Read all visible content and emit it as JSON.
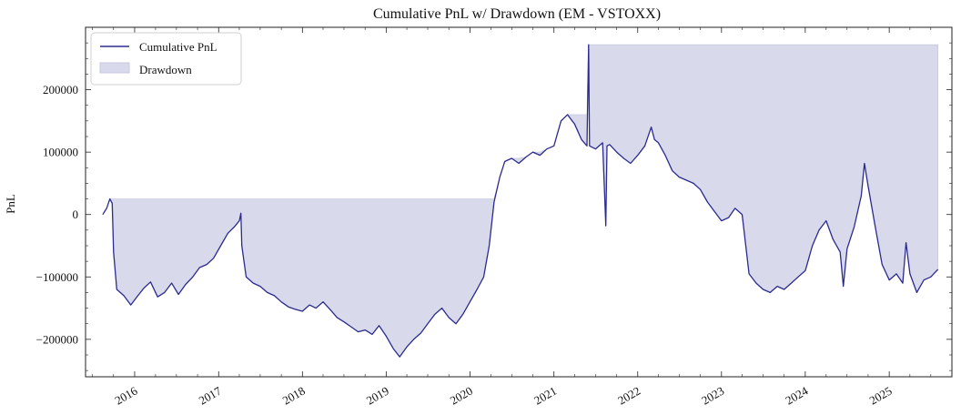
{
  "chart_data": {
    "type": "line",
    "title": "Cumulative PnL w/ Drawdown (EM - VSTOXX)",
    "xlabel": "",
    "ylabel": "PnL",
    "xlim": [
      "2015-06-01",
      "2025-10-01"
    ],
    "ylim": [
      -260000,
      300000
    ],
    "x_ticks": [
      "2016",
      "2017",
      "2018",
      "2019",
      "2020",
      "2021",
      "2022",
      "2023",
      "2024",
      "2025"
    ],
    "y_ticks": [
      -200000,
      -100000,
      0,
      100000,
      200000
    ],
    "y_tick_labels": [
      "−200000",
      "−100000",
      "0",
      "100000",
      "200000"
    ],
    "grid": false,
    "legend": "top-left",
    "colors": {
      "line": "#2b2b8f",
      "drawdown_fill": "#d9d9ec",
      "drawdown_edge": "#c8c8e2"
    },
    "series": [
      {
        "name": "Cumulative PnL",
        "points": [
          [
            "2015-08-15",
            0
          ],
          [
            "2015-09-01",
            10000
          ],
          [
            "2015-09-15",
            25000
          ],
          [
            "2015-09-25",
            18000
          ],
          [
            "2015-10-01",
            -60000
          ],
          [
            "2015-10-15",
            -120000
          ],
          [
            "2015-11-15",
            -130000
          ],
          [
            "2015-12-15",
            -145000
          ],
          [
            "2016-01-15",
            -130000
          ],
          [
            "2016-02-10",
            -118000
          ],
          [
            "2016-03-10",
            -108000
          ],
          [
            "2016-04-10",
            -132000
          ],
          [
            "2016-05-10",
            -125000
          ],
          [
            "2016-06-10",
            -110000
          ],
          [
            "2016-07-10",
            -128000
          ],
          [
            "2016-08-10",
            -112000
          ],
          [
            "2016-09-10",
            -100000
          ],
          [
            "2016-10-10",
            -85000
          ],
          [
            "2016-11-10",
            -80000
          ],
          [
            "2016-12-10",
            -70000
          ],
          [
            "2017-01-10",
            -50000
          ],
          [
            "2017-02-10",
            -30000
          ],
          [
            "2017-03-10",
            -20000
          ],
          [
            "2017-04-01",
            -10000
          ],
          [
            "2017-04-08",
            2000
          ],
          [
            "2017-04-12",
            -50000
          ],
          [
            "2017-05-01",
            -100000
          ],
          [
            "2017-06-01",
            -110000
          ],
          [
            "2017-07-01",
            -115000
          ],
          [
            "2017-08-01",
            -125000
          ],
          [
            "2017-09-01",
            -130000
          ],
          [
            "2017-10-01",
            -140000
          ],
          [
            "2017-11-01",
            -148000
          ],
          [
            "2017-12-01",
            -152000
          ],
          [
            "2018-01-01",
            -155000
          ],
          [
            "2018-02-01",
            -145000
          ],
          [
            "2018-03-01",
            -150000
          ],
          [
            "2018-04-01",
            -140000
          ],
          [
            "2018-05-01",
            -152000
          ],
          [
            "2018-06-01",
            -165000
          ],
          [
            "2018-07-01",
            -172000
          ],
          [
            "2018-08-01",
            -180000
          ],
          [
            "2018-09-01",
            -188000
          ],
          [
            "2018-10-01",
            -185000
          ],
          [
            "2018-11-01",
            -192000
          ],
          [
            "2018-12-01",
            -178000
          ],
          [
            "2019-01-01",
            -195000
          ],
          [
            "2019-02-01",
            -215000
          ],
          [
            "2019-03-01",
            -228000
          ],
          [
            "2019-04-01",
            -212000
          ],
          [
            "2019-05-01",
            -200000
          ],
          [
            "2019-06-01",
            -190000
          ],
          [
            "2019-07-01",
            -175000
          ],
          [
            "2019-08-01",
            -160000
          ],
          [
            "2019-09-01",
            -150000
          ],
          [
            "2019-10-01",
            -165000
          ],
          [
            "2019-11-01",
            -175000
          ],
          [
            "2019-12-01",
            -160000
          ],
          [
            "2020-01-01",
            -140000
          ],
          [
            "2020-02-01",
            -120000
          ],
          [
            "2020-03-01",
            -100000
          ],
          [
            "2020-03-25",
            -50000
          ],
          [
            "2020-04-15",
            20000
          ],
          [
            "2020-05-10",
            60000
          ],
          [
            "2020-06-01",
            85000
          ],
          [
            "2020-07-01",
            90000
          ],
          [
            "2020-08-01",
            82000
          ],
          [
            "2020-09-01",
            92000
          ],
          [
            "2020-10-01",
            100000
          ],
          [
            "2020-11-01",
            95000
          ],
          [
            "2020-12-01",
            105000
          ],
          [
            "2021-01-01",
            110000
          ],
          [
            "2021-02-01",
            150000
          ],
          [
            "2021-03-01",
            160000
          ],
          [
            "2021-04-01",
            145000
          ],
          [
            "2021-05-01",
            120000
          ],
          [
            "2021-05-25",
            110000
          ],
          [
            "2021-06-01",
            272000
          ],
          [
            "2021-06-05",
            110000
          ],
          [
            "2021-07-01",
            105000
          ],
          [
            "2021-08-01",
            115000
          ],
          [
            "2021-08-15",
            -18000
          ],
          [
            "2021-08-20",
            110000
          ],
          [
            "2021-09-01",
            112000
          ],
          [
            "2021-10-01",
            100000
          ],
          [
            "2021-11-01",
            90000
          ],
          [
            "2021-12-01",
            82000
          ],
          [
            "2022-01-01",
            95000
          ],
          [
            "2022-02-01",
            110000
          ],
          [
            "2022-03-01",
            140000
          ],
          [
            "2022-03-15",
            120000
          ],
          [
            "2022-04-01",
            115000
          ],
          [
            "2022-05-01",
            95000
          ],
          [
            "2022-06-01",
            70000
          ],
          [
            "2022-07-01",
            60000
          ],
          [
            "2022-08-01",
            55000
          ],
          [
            "2022-09-01",
            50000
          ],
          [
            "2022-10-01",
            40000
          ],
          [
            "2022-11-01",
            20000
          ],
          [
            "2022-12-01",
            5000
          ],
          [
            "2023-01-01",
            -10000
          ],
          [
            "2023-02-01",
            -5000
          ],
          [
            "2023-03-01",
            10000
          ],
          [
            "2023-04-01",
            0
          ],
          [
            "2023-05-01",
            -95000
          ],
          [
            "2023-06-01",
            -110000
          ],
          [
            "2023-07-01",
            -120000
          ],
          [
            "2023-08-01",
            -125000
          ],
          [
            "2023-09-01",
            -115000
          ],
          [
            "2023-10-01",
            -120000
          ],
          [
            "2023-11-01",
            -110000
          ],
          [
            "2023-12-01",
            -100000
          ],
          [
            "2024-01-01",
            -90000
          ],
          [
            "2024-02-01",
            -50000
          ],
          [
            "2024-03-01",
            -25000
          ],
          [
            "2024-04-01",
            -10000
          ],
          [
            "2024-05-01",
            -40000
          ],
          [
            "2024-06-01",
            -60000
          ],
          [
            "2024-06-15",
            -115000
          ],
          [
            "2024-07-01",
            -55000
          ],
          [
            "2024-08-01",
            -20000
          ],
          [
            "2024-09-01",
            30000
          ],
          [
            "2024-09-15",
            82000
          ],
          [
            "2024-10-01",
            45000
          ],
          [
            "2024-11-01",
            -20000
          ],
          [
            "2024-12-01",
            -80000
          ],
          [
            "2025-01-01",
            -105000
          ],
          [
            "2025-02-01",
            -95000
          ],
          [
            "2025-03-01",
            -110000
          ],
          [
            "2025-03-15",
            -45000
          ],
          [
            "2025-04-01",
            -95000
          ],
          [
            "2025-05-01",
            -125000
          ],
          [
            "2025-06-01",
            -105000
          ],
          [
            "2025-07-01",
            -100000
          ],
          [
            "2025-08-01",
            -88000
          ]
        ]
      },
      {
        "name": "Drawdown",
        "fill_between": "running_max_and_series"
      }
    ]
  }
}
